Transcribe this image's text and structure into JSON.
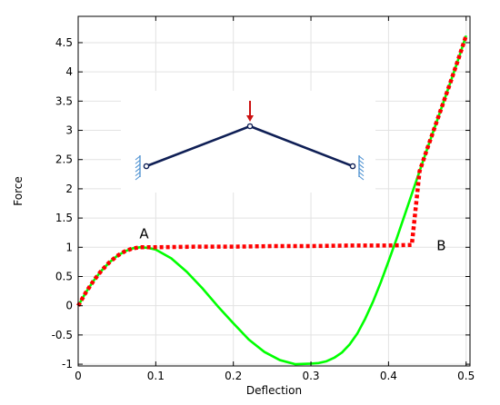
{
  "chart_data": {
    "type": "line",
    "xlabel": "Deflection",
    "ylabel": "Force",
    "xlim": [
      0,
      0.505
    ],
    "ylim": [
      -1.03,
      4.95
    ],
    "xticks": [
      0,
      0.1,
      0.2,
      0.3,
      0.4,
      0.5
    ],
    "xtick_labels": [
      "0",
      "0.1",
      "0.2",
      "0.3",
      "0.4",
      "0.5"
    ],
    "yticks": [
      -1,
      -0.5,
      0,
      0.5,
      1,
      1.5,
      2,
      2.5,
      3,
      3.5,
      4,
      4.5
    ],
    "ytick_labels": [
      "-1",
      "-0.5",
      "0",
      "0.5",
      "1",
      "1.5",
      "2",
      "2.5",
      "3",
      "3.5",
      "4",
      "4.5"
    ],
    "grid": true,
    "series": [
      {
        "color": "#00ff00",
        "style": "solid",
        "x": [
          0,
          0.01,
          0.02,
          0.03,
          0.04,
          0.05,
          0.06,
          0.07,
          0.08,
          0.09,
          0.1,
          0.12,
          0.14,
          0.16,
          0.18,
          0.2,
          0.22,
          0.24,
          0.26,
          0.28,
          0.3,
          0.31,
          0.32,
          0.33,
          0.34,
          0.35,
          0.36,
          0.37,
          0.38,
          0.39,
          0.4,
          0.41,
          0.42,
          0.43,
          0.44,
          0.45,
          0.46,
          0.47,
          0.48,
          0.49,
          0.5
        ],
        "y": [
          0,
          0.23,
          0.43,
          0.6,
          0.74,
          0.85,
          0.93,
          0.98,
          1.0,
          0.99,
          0.96,
          0.81,
          0.58,
          0.3,
          -0.01,
          -0.3,
          -0.58,
          -0.79,
          -0.93,
          -1.0,
          -0.99,
          -0.98,
          -0.95,
          -0.89,
          -0.8,
          -0.66,
          -0.47,
          -0.22,
          0.07,
          0.4,
          0.76,
          1.13,
          1.52,
          1.91,
          2.3,
          2.69,
          3.07,
          3.45,
          3.83,
          4.22,
          4.62
        ]
      },
      {
        "color": "#ff0000",
        "style": "dotted",
        "x": [
          0,
          0.01,
          0.02,
          0.03,
          0.04,
          0.05,
          0.06,
          0.07,
          0.08,
          0.09,
          0.1,
          0.15,
          0.2,
          0.25,
          0.3,
          0.35,
          0.4,
          0.43,
          0.44,
          0.45,
          0.46,
          0.47,
          0.48,
          0.49,
          0.5
        ],
        "y": [
          0,
          0.23,
          0.43,
          0.6,
          0.74,
          0.85,
          0.93,
          0.98,
          1.0,
          1.0,
          1.0,
          1.01,
          1.01,
          1.02,
          1.02,
          1.03,
          1.03,
          1.04,
          2.3,
          2.69,
          3.07,
          3.45,
          3.83,
          4.22,
          4.62
        ]
      }
    ],
    "annotations": [
      {
        "text": "A",
        "x": 0.085,
        "y": 1.23
      },
      {
        "text": "B",
        "x": 0.468,
        "y": 1.03
      }
    ],
    "inset": {
      "content": "schematic of three-hinge truss: two inclined members pinned to supports, apex hinge loaded by a downward force arrow",
      "member_color": "#0f1f55",
      "support_color": "#4a8fd0",
      "load_color": "#cc1111"
    }
  }
}
